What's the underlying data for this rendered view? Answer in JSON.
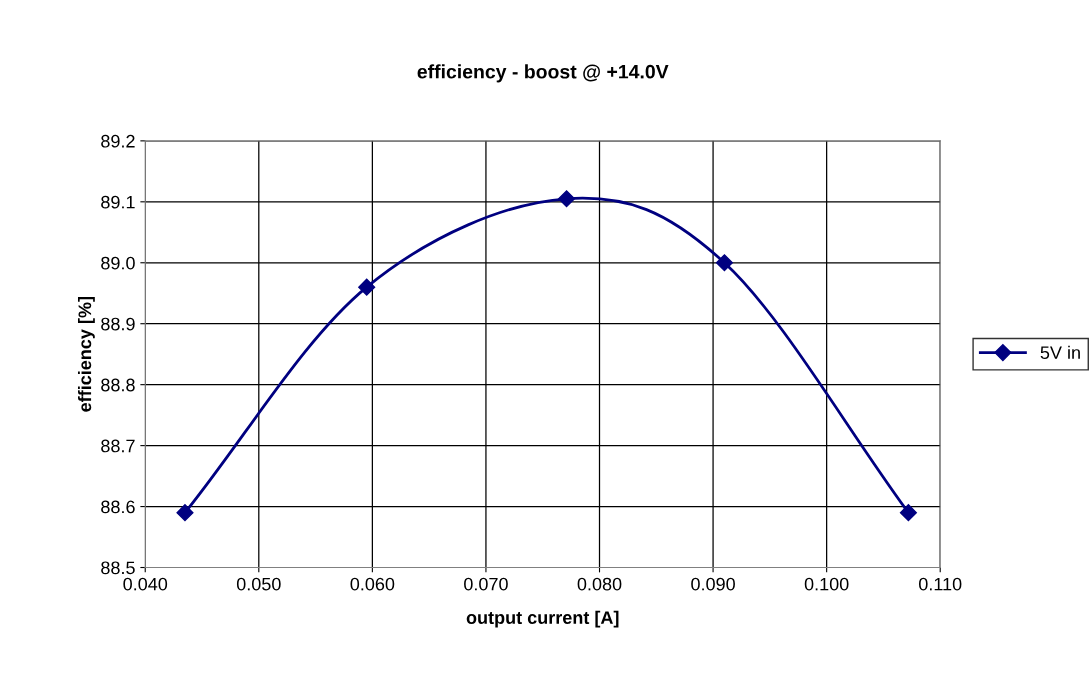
{
  "chart_data": {
    "type": "line",
    "title": "efficiency - boost @ +14.0V",
    "xlabel": "output current [A]",
    "ylabel": "efficiency [%]",
    "x": [
      0.0435,
      0.0595,
      0.0771,
      0.091,
      0.1072
    ],
    "series": [
      {
        "name": "5V in",
        "color": "#000080",
        "values": [
          88.59,
          88.96,
          89.105,
          89.0,
          88.59
        ]
      }
    ],
    "xlim": [
      0.04,
      0.11
    ],
    "xticks": [
      {
        "value": 0.04,
        "label": "0.040"
      },
      {
        "value": 0.05,
        "label": "0.050"
      },
      {
        "value": 0.06,
        "label": "0.060"
      },
      {
        "value": 0.07,
        "label": "0.070"
      },
      {
        "value": 0.08,
        "label": "0.080"
      },
      {
        "value": 0.09,
        "label": "0.090"
      },
      {
        "value": 0.1,
        "label": "0.100"
      },
      {
        "value": 0.11,
        "label": "0.110"
      }
    ],
    "ylim": [
      88.5,
      89.2
    ],
    "yticks": [
      {
        "value": 88.5,
        "label": "88.5"
      },
      {
        "value": 88.6,
        "label": "88.6"
      },
      {
        "value": 88.7,
        "label": "88.7"
      },
      {
        "value": 88.8,
        "label": "88.8"
      },
      {
        "value": 88.9,
        "label": "88.9"
      },
      {
        "value": 89.0,
        "label": "89.0"
      },
      {
        "value": 89.1,
        "label": "89.1"
      },
      {
        "value": 89.2,
        "label": "89.2"
      }
    ],
    "grid": true,
    "legend": "right",
    "marker": "diamond",
    "line_style": "solid"
  }
}
